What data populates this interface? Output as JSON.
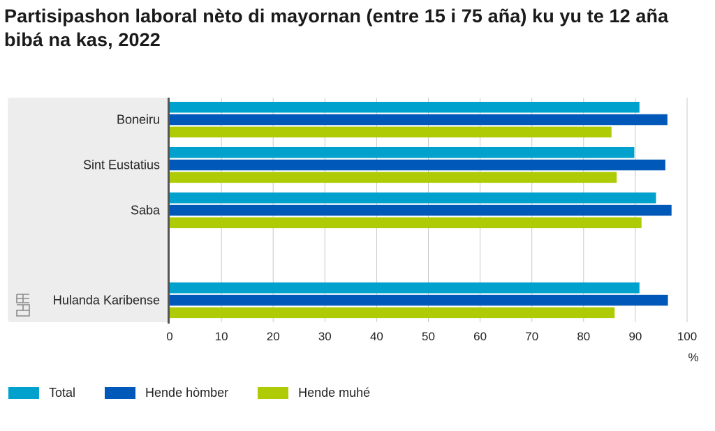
{
  "title": "Partisipashon laboral nèto di mayornan (entre 15 i 75 aña) ku yu te 12 aña bibá na kas, 2022",
  "chart_data": {
    "type": "bar",
    "orientation": "horizontal",
    "categories": [
      "Boneiru",
      "Sint Eustatius",
      "Saba",
      "Hulanda Karibense"
    ],
    "series": [
      {
        "name": "Total",
        "color": "#00a1cd",
        "values": [
          90.8,
          89.8,
          94.0,
          90.8
        ]
      },
      {
        "name": "Hende hòmber",
        "color": "#0058b8",
        "values": [
          96.2,
          95.8,
          97.0,
          96.3
        ]
      },
      {
        "name": "Hende muhé",
        "color": "#afcb05",
        "values": [
          85.4,
          86.4,
          91.2,
          86.0
        ]
      }
    ],
    "xlim": [
      0,
      100
    ],
    "xticks": [
      0,
      10,
      20,
      30,
      40,
      50,
      60,
      70,
      80,
      90,
      100
    ],
    "xunit": "%",
    "grid": true,
    "legend_position": "bottom"
  }
}
